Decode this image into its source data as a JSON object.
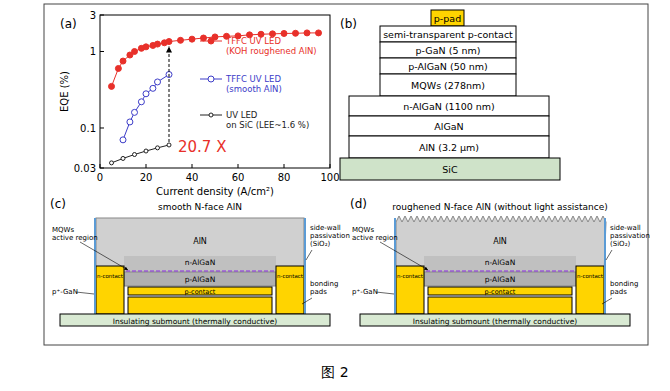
{
  "chart_data": {
    "type": "line",
    "title": "(a)",
    "x_label": "Current density (A/cm²)",
    "y_label": "EQE (%)",
    "log": "y",
    "xlim": [
      0,
      100
    ],
    "ylim": [
      0.03,
      3
    ],
    "xticks": [
      0,
      20,
      40,
      60,
      80,
      100
    ],
    "yticks": [
      0.03,
      0.1,
      1,
      3
    ],
    "legend": "right",
    "series": [
      {
        "name": "TFFC UV LED\n(KOH roughened AlN)",
        "color": "#e8302a",
        "marker": "circle",
        "x": [
          5,
          8,
          10,
          13,
          15,
          18,
          20,
          23,
          25,
          28,
          30,
          35,
          40,
          45,
          50,
          55,
          60,
          65,
          70,
          75,
          80,
          85,
          90,
          95
        ],
        "values": [
          0.35,
          0.6,
          0.75,
          0.9,
          1.0,
          1.1,
          1.15,
          1.2,
          1.25,
          1.3,
          1.35,
          1.4,
          1.45,
          1.5,
          1.55,
          1.58,
          1.6,
          1.65,
          1.68,
          1.7,
          1.72,
          1.73,
          1.75,
          1.75
        ]
      },
      {
        "name": "TFFC UV LED\n(smooth AlN)",
        "color": "#3c3cc8",
        "marker": "open_circle",
        "x": [
          10,
          13,
          15,
          18,
          20,
          23,
          25,
          30
        ],
        "values": [
          0.07,
          0.12,
          0.16,
          0.22,
          0.28,
          0.33,
          0.4,
          0.5
        ]
      },
      {
        "name": "UV LED\non SiC (LEE~1.6 %)",
        "color": "#222222",
        "marker": "open_circle",
        "x": [
          5,
          10,
          15,
          20,
          25,
          30
        ],
        "values": [
          0.035,
          0.04,
          0.045,
          0.05,
          0.055,
          0.06
        ]
      }
    ],
    "annotations": [
      {
        "text": "20.7 X",
        "color": "#e8302a"
      }
    ]
  },
  "panels": [
    {
      "label": "(b)",
      "layers": [
        "p-pad",
        "semi-transparent p-contact",
        "p-GaN (5 nm)",
        "p-AlGaN (50 nm)",
        "MQWs (278nm)",
        "n-AlGaN (1100 nm)",
        "AlGaN",
        "AlN (3.2 μm)",
        "SiC"
      ]
    },
    {
      "label": "(c)",
      "title": "smooth N-face AlN",
      "mqw": "MQWs\nactive region",
      "sidewall": "side-wall\npassivation\n(SiO₂)",
      "aln": "AlN",
      "nalgan": "n-AlGaN",
      "palgan": "p-AlGaN",
      "pcontact": "p-contact",
      "ncontact": "n-contact",
      "pgan": "p⁺-GaN",
      "pads": "bonding\npads",
      "submount": "Insulating submount (thermally conductive)"
    },
    {
      "label": "(d)",
      "title": "roughened N-face AlN (without light assistance)",
      "mqw": "MQWs\nactive region",
      "sidewall": "side-wall\npassivation\n(SiO₂)",
      "aln": "AlN",
      "nalgan": "n-AlGaN",
      "palgan": "p-AlGaN",
      "pcontact": "p-contact",
      "ncontact": "n-contact",
      "pgan": "p⁺-GaN",
      "pads": "bonding\npads",
      "submount": "Insulating submount (thermally conductive)"
    }
  ],
  "caption": "图 2"
}
